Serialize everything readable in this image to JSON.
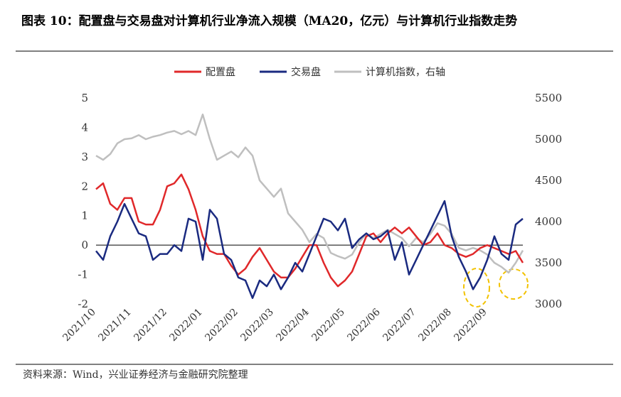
{
  "chart_data": {
    "type": "line",
    "title": "图表 10：配置盘与交易盘对计算机行业净流入规模（MA20，亿元）与计算机行业指数走势",
    "source": "资料来源：Wind，兴业证券经济与金融研究院整理",
    "legend": "top",
    "categories": [
      "2021/10",
      null,
      null,
      null,
      null,
      "2021/11",
      null,
      null,
      null,
      null,
      "2021/12",
      null,
      null,
      null,
      null,
      "2022/01",
      null,
      null,
      null,
      null,
      "2022/02",
      null,
      null,
      null,
      null,
      "2022/03",
      null,
      null,
      null,
      null,
      "2022/04",
      null,
      null,
      null,
      null,
      "2022/05",
      null,
      null,
      null,
      null,
      "2022/06",
      null,
      null,
      null,
      null,
      "2022/07",
      null,
      null,
      null,
      null,
      "2022/08",
      null,
      null,
      null,
      null,
      "2022/09",
      null,
      null,
      null,
      null,
      null
    ],
    "ylim": [
      -2,
      5
    ],
    "yticks": [
      -2,
      -1,
      0,
      1,
      2,
      3,
      4,
      5
    ],
    "y2lim": [
      3000,
      5500
    ],
    "y2ticks": [
      3000,
      3500,
      4000,
      4500,
      5000,
      5500
    ],
    "series": [
      {
        "name": "配置盘",
        "color": "#e0282a",
        "values": [
          1.9,
          2.1,
          1.4,
          1.2,
          1.6,
          1.6,
          0.8,
          0.7,
          0.7,
          1.2,
          2.0,
          2.1,
          2.4,
          1.9,
          1.2,
          0.3,
          -0.2,
          -0.3,
          -0.3,
          -0.7,
          -1.0,
          -0.8,
          -0.4,
          -0.1,
          -0.5,
          -0.9,
          -1.1,
          -1.1,
          -0.8,
          -0.4,
          0.0,
          0.0,
          -0.6,
          -1.1,
          -1.4,
          -1.2,
          -0.9,
          -0.3,
          0.3,
          0.4,
          0.1,
          0.4,
          0.6,
          0.4,
          0.6,
          0.3,
          0.0,
          0.1,
          0.4,
          0.0,
          -0.1,
          -0.3,
          -0.4,
          -0.3,
          -0.1,
          0.0,
          -0.1,
          -0.2,
          -0.3,
          -0.2,
          -0.6
        ]
      },
      {
        "name": "交易盘",
        "color": "#1a2a80",
        "values": [
          -0.2,
          -0.5,
          0.3,
          0.8,
          1.4,
          0.9,
          0.4,
          0.3,
          -0.5,
          -0.3,
          -0.3,
          0.0,
          -0.2,
          0.9,
          0.8,
          -0.5,
          1.2,
          0.9,
          -0.3,
          -0.5,
          -1.1,
          -1.2,
          -1.8,
          -1.2,
          -1.4,
          -1.0,
          -1.5,
          -1.1,
          -0.6,
          -0.9,
          -0.3,
          0.3,
          0.9,
          0.8,
          0.5,
          0.9,
          -0.1,
          0.2,
          0.4,
          0.2,
          0.3,
          0.5,
          -0.5,
          0.1,
          -1.0,
          -0.5,
          0.0,
          0.5,
          1.0,
          1.5,
          0.3,
          -0.4,
          -0.9,
          -1.5,
          -1.1,
          -0.5,
          0.3,
          -0.3,
          -0.5,
          0.7,
          0.9
        ]
      },
      {
        "name": "计算机指数，右轴",
        "color": "#bfbfbf",
        "axis": "y2",
        "values": [
          4800,
          4750,
          4820,
          4950,
          5000,
          5010,
          5050,
          5000,
          5030,
          5050,
          5080,
          5100,
          5060,
          5100,
          5050,
          5300,
          5000,
          4750,
          4800,
          4850,
          4780,
          4900,
          4800,
          4500,
          4400,
          4300,
          4400,
          4100,
          4000,
          3900,
          3750,
          3850,
          3800,
          3620,
          3580,
          3550,
          3600,
          3750,
          3850,
          3800,
          3850,
          3900,
          3850,
          3800,
          3700,
          3800,
          3750,
          3850,
          3980,
          3950,
          3850,
          3680,
          3650,
          3680,
          3650,
          3600,
          3500,
          3450,
          3380,
          3500,
          3650
        ]
      }
    ]
  }
}
